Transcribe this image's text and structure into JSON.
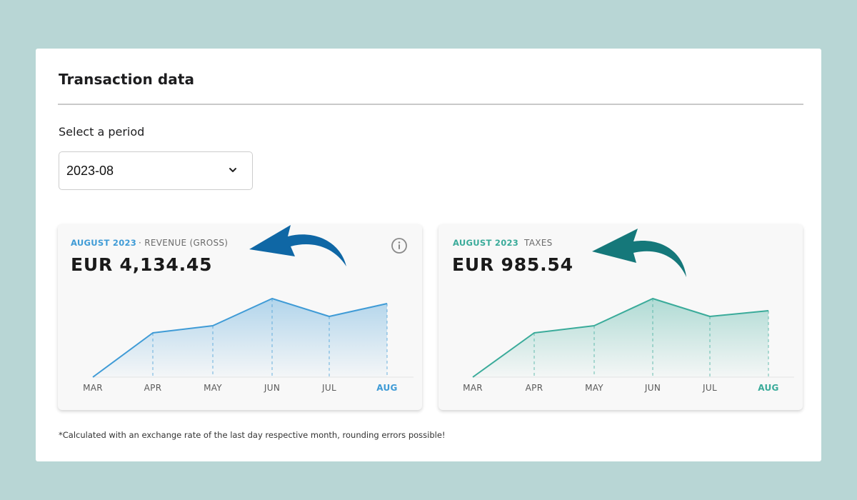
{
  "page": {
    "title": "Transaction data"
  },
  "period": {
    "label": "Select a period",
    "value": "2023-08"
  },
  "colors": {
    "revenue": "#3f9bd6",
    "taxes": "#3aab9a",
    "arrow_revenue": "#0f67a5",
    "arrow_taxes": "#15787a"
  },
  "panels": [
    {
      "period": "AUGUST 2023",
      "metric": "· REVENUE (GROSS)",
      "amount": "EUR 4,134.45",
      "info_icon": "info-icon"
    },
    {
      "period": "AUGUST 2023",
      "metric": "TAXES",
      "amount": "EUR 985.54"
    }
  ],
  "chart_data": [
    {
      "type": "area",
      "categories": [
        "MAR",
        "APR",
        "MAY",
        "JUN",
        "JUL",
        "AUG"
      ],
      "values": [
        0,
        62,
        72,
        110,
        85,
        103
      ],
      "highlight": "AUG",
      "color": "#3f9bd6"
    },
    {
      "type": "area",
      "categories": [
        "MAR",
        "APR",
        "MAY",
        "JUN",
        "JUL",
        "AUG"
      ],
      "values": [
        0,
        62,
        72,
        110,
        85,
        93
      ],
      "highlight": "AUG",
      "color": "#3aab9a"
    }
  ],
  "footnote": "*Calculated with an exchange rate of the last day respective month, rounding errors possible!"
}
